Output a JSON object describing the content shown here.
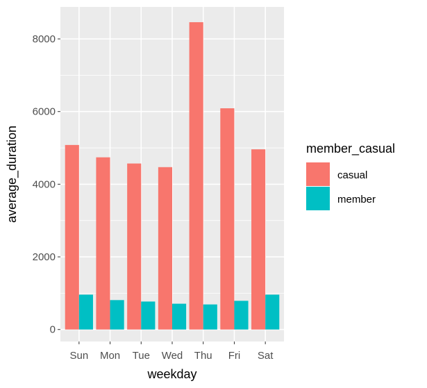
{
  "chart_data": {
    "type": "bar",
    "categories": [
      "Sun",
      "Mon",
      "Tue",
      "Wed",
      "Thu",
      "Fri",
      "Sat"
    ],
    "series": [
      {
        "name": "casual",
        "values": [
          5080,
          4740,
          4570,
          4470,
          8460,
          6090,
          4960
        ],
        "color": "#F8766D"
      },
      {
        "name": "member",
        "values": [
          960,
          810,
          770,
          710,
          690,
          790,
          960
        ],
        "color": "#00BFC4"
      }
    ],
    "xlabel": "weekday",
    "ylabel": "average_duration",
    "yticks": [
      0,
      2000,
      4000,
      6000,
      8000
    ],
    "ylim": [
      -330,
      8880
    ],
    "legend": {
      "title": "member_casual",
      "position": "right"
    },
    "grid": true,
    "panel_color": "#EBEBEB"
  }
}
